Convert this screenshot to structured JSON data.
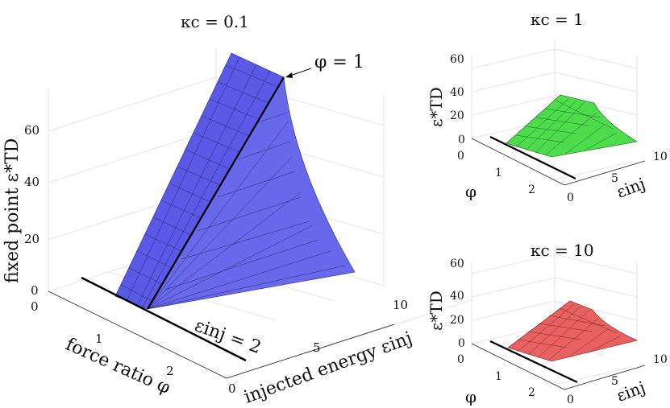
{
  "chart_data": [
    {
      "type": "surface",
      "title": "κc = 0.1",
      "xlabel": "injected energy εinj",
      "ylabel": "force ratio φ",
      "zlabel": "fixed point ε*TD",
      "x_ticks": [
        "0",
        "5",
        "10"
      ],
      "y_ticks": [
        "0",
        "1",
        "2"
      ],
      "z_ticks": [
        "0",
        "20",
        "40",
        "60"
      ],
      "xlim": [
        0,
        10
      ],
      "ylim": [
        0,
        2.5
      ],
      "zlim": [
        0,
        75
      ],
      "surface_color": "#5a5ae6",
      "annotations": [
        "φ = 1",
        "εinj = 2"
      ],
      "surface": {
        "eps_inj": [
          2,
          10
        ],
        "phi": [
          0.7,
          1.0
        ],
        "z_eps2": [
          0,
          0
        ],
        "z_eps10": [
          0,
          75
        ]
      }
    },
    {
      "type": "surface",
      "title": "κc = 1",
      "xlabel": "εinj",
      "ylabel": "φ",
      "zlabel": "ε*TD",
      "x_ticks": [
        "0",
        "5",
        "10"
      ],
      "y_ticks": [
        "0",
        "1",
        "2"
      ],
      "z_ticks": [
        "0",
        "20",
        "40",
        "60"
      ],
      "zlim": [
        0,
        75
      ],
      "surface_color": "#4cdc4c",
      "peak": 28
    },
    {
      "type": "surface",
      "title": "κc = 10",
      "xlabel": "εinj",
      "ylabel": "φ",
      "zlabel": "ε*TD",
      "x_ticks": [
        "0",
        "5",
        "10"
      ],
      "y_ticks": [
        "0",
        "1",
        "2"
      ],
      "z_ticks": [
        "0",
        "20",
        "40",
        "60"
      ],
      "zlim": [
        0,
        75
      ],
      "surface_color": "#e86060",
      "peak": 22
    }
  ]
}
